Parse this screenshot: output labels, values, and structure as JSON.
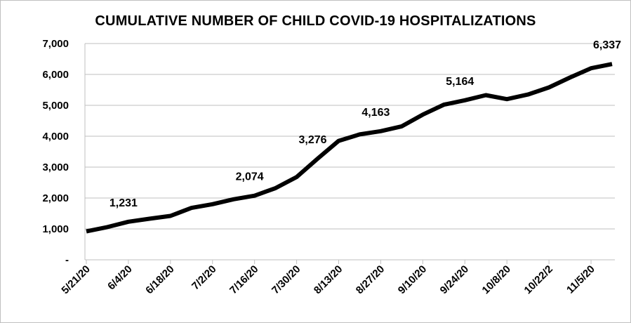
{
  "chart_data": {
    "type": "line",
    "title": "CUMULATIVE NUMBER OF CHILD COVID-19 HOSPITALIZATIONS",
    "xlabel": "",
    "ylabel": "",
    "ylim": [
      0,
      7000
    ],
    "y_ticks": [
      "-",
      "1,000",
      "2,000",
      "3,000",
      "4,000",
      "5,000",
      "6,000",
      "7,000"
    ],
    "x_tick_labels": [
      "5/21/20",
      "6/4/20",
      "6/18/20",
      "7/2/20",
      "7/16/20",
      "7/30/20",
      "8/13/20",
      "8/27/20",
      "9/10/20",
      "9/24/20",
      "10/8/20",
      "10/22/2",
      "11/5/20"
    ],
    "grid": true,
    "legend": "none",
    "line_color": "#000000",
    "series": [
      {
        "x": [
          "5/21/20",
          "5/28/20",
          "6/4/20",
          "6/11/20",
          "6/18/20",
          "6/25/20",
          "7/2/20",
          "7/9/20",
          "7/16/20",
          "7/23/20",
          "7/30/20",
          "8/6/20",
          "8/13/20",
          "8/20/20",
          "8/27/20",
          "9/3/20",
          "9/10/20",
          "9/17/20",
          "9/24/20",
          "10/1/20",
          "10/8/20",
          "10/15/20",
          "10/22/20",
          "10/29/20",
          "11/5/20",
          "11/12/20"
        ],
        "values": [
          920,
          1060,
          1231,
          1330,
          1420,
          1680,
          1800,
          1960,
          2074,
          2320,
          2680,
          3276,
          3850,
          4060,
          4163,
          4320,
          4700,
          5020,
          5164,
          5330,
          5200,
          5350,
          5580,
          5900,
          6200,
          6337
        ]
      }
    ],
    "data_labels": [
      {
        "index": 2,
        "text": "1,231"
      },
      {
        "index": 8,
        "text": "2,074"
      },
      {
        "index": 11,
        "text": "3,276"
      },
      {
        "index": 14,
        "text": "4,163"
      },
      {
        "index": 18,
        "text": "5,164"
      },
      {
        "index": 25,
        "text": "6,337"
      }
    ]
  }
}
